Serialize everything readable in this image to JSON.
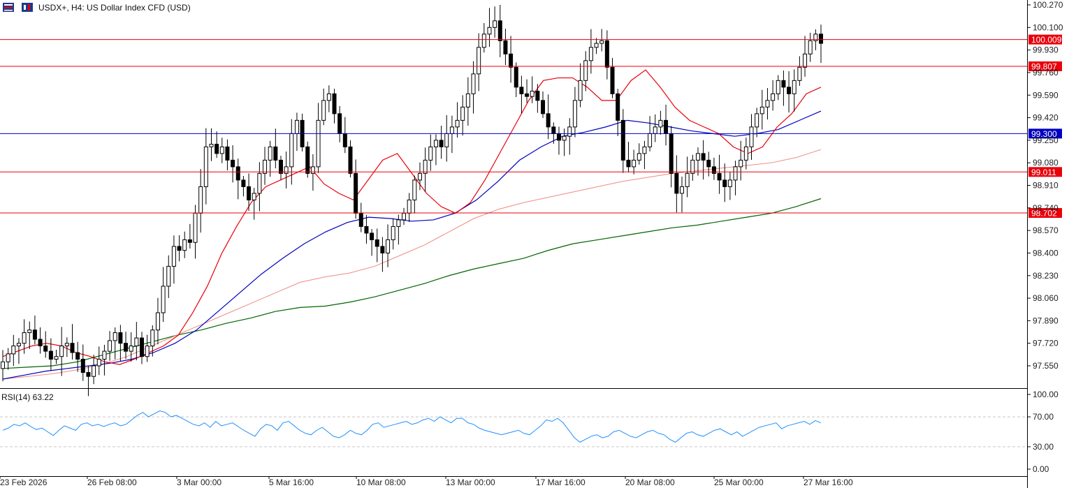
{
  "header": {
    "symbol_text": "USDX+, H4:  US Dollar Index CFD (USD)"
  },
  "indicator": {
    "label": "RSI(14) 63.22"
  },
  "colors": {
    "background": "#ffffff",
    "grid_dash": "#c8c8c8",
    "candle": "#000000",
    "ema_fast": "#e8000b",
    "ema_mid": "#0000c0",
    "ema_slow": "#f08a80",
    "ema_long": "#006400",
    "level_red": "#e8000b",
    "level_blue": "#0000c0",
    "rsi_line": "#1e90ff"
  },
  "chart_data": [
    {
      "type": "candlestick",
      "title": "USDX+, H4:  US Dollar Index CFD (USD)",
      "ylim": [
        97.42,
        100.3
      ],
      "y_ticks": [
        "100.270",
        "100.100",
        "99.930",
        "99.760",
        "99.590",
        "99.420",
        "99.250",
        "99.080",
        "98.910",
        "98.740",
        "98.570",
        "98.400",
        "98.230",
        "98.060",
        "97.890",
        "97.720",
        "97.550"
      ],
      "x_ticks": [
        "23 Feb 2026",
        "26 Feb 08:00",
        "3 Mar 00:00",
        "5 Mar 16:00",
        "10 Mar 08:00",
        "13 Mar 00:00",
        "17 Mar 16:00",
        "20 Mar 08:00",
        "25 Mar 00:00",
        "27 Mar 16:00"
      ],
      "horizontal_levels": [
        {
          "value": 100.009,
          "label": "100.009",
          "color": "red"
        },
        {
          "value": 99.807,
          "label": "99.807",
          "color": "red"
        },
        {
          "value": 99.3,
          "label": "99.300",
          "color": "blue"
        },
        {
          "value": 99.011,
          "label": "99.011",
          "color": "red"
        },
        {
          "value": 98.702,
          "label": "98.702",
          "color": "red"
        }
      ],
      "series": [
        {
          "role": "close",
          "values": [
            97.58,
            97.64,
            97.7,
            97.72,
            97.8,
            97.82,
            97.75,
            97.7,
            97.66,
            97.6,
            97.62,
            97.7,
            97.72,
            97.65,
            97.6,
            97.5,
            97.47,
            97.55,
            97.6,
            97.66,
            97.74,
            97.8,
            97.72,
            97.66,
            97.7,
            97.76,
            97.62,
            97.7,
            97.82,
            97.95,
            98.15,
            98.3,
            98.45,
            98.42,
            98.5,
            98.48,
            98.7,
            98.9,
            99.2,
            99.22,
            99.15,
            99.2,
            99.1,
            99.05,
            98.95,
            98.9,
            98.8,
            98.85,
            99.0,
            99.1,
            99.2,
            99.1,
            99.0,
            99.05,
            99.3,
            99.4,
            99.2,
            99.0,
            99.05,
            99.4,
            99.55,
            99.6,
            99.45,
            99.3,
            99.2,
            99.0,
            98.7,
            98.6,
            98.55,
            98.5,
            98.45,
            98.4,
            98.5,
            98.6,
            98.65,
            98.7,
            98.8,
            98.95,
            99.0,
            99.1,
            99.2,
            99.25,
            99.2,
            99.3,
            99.35,
            99.4,
            99.5,
            99.6,
            99.75,
            99.95,
            100.05,
            100.1,
            100.15,
            100.0,
            99.9,
            99.8,
            99.65,
            99.6,
            99.58,
            99.62,
            99.55,
            99.45,
            99.35,
            99.3,
            99.25,
            99.28,
            99.35,
            99.55,
            99.7,
            99.85,
            99.95,
            99.98,
            100.0,
            99.8,
            99.6,
            99.4,
            99.1,
            99.05,
            99.1,
            99.15,
            99.2,
            99.3,
            99.35,
            99.4,
            99.3,
            99.0,
            98.85,
            98.9,
            99.0,
            99.1,
            99.15,
            99.1,
            99.05,
            99.0,
            98.95,
            98.9,
            98.95,
            99.05,
            99.1,
            99.2,
            99.35,
            99.45,
            99.5,
            99.55,
            99.6,
            99.7,
            99.65,
            99.6,
            99.7,
            99.8,
            99.9,
            100.0,
            100.05,
            99.98
          ]
        },
        {
          "role": "ema_fast",
          "values": [
            97.62,
            97.66,
            97.7,
            97.72,
            97.7,
            97.65,
            97.62,
            97.58,
            97.56,
            97.6,
            97.65,
            97.7,
            97.78,
            97.95,
            98.15,
            98.4,
            98.6,
            98.78,
            98.9,
            98.95,
            99.0,
            99.05,
            98.92,
            98.85,
            98.8,
            98.95,
            99.1,
            99.15,
            99.0,
            98.85,
            98.75,
            98.7,
            98.78,
            98.95,
            99.15,
            99.35,
            99.55,
            99.7,
            99.72,
            99.72,
            99.65,
            99.55,
            99.55,
            99.7,
            99.78,
            99.65,
            99.5,
            99.4,
            99.35,
            99.3,
            99.2,
            99.15,
            99.2,
            99.35,
            99.45,
            99.6,
            99.65
          ]
        },
        {
          "role": "ema_mid",
          "values": [
            97.45,
            97.48,
            97.51,
            97.53,
            97.55,
            97.57,
            97.6,
            97.65,
            97.72,
            97.82,
            97.96,
            98.1,
            98.24,
            98.36,
            98.47,
            98.56,
            98.63,
            98.67,
            98.66,
            98.64,
            98.65,
            98.7,
            98.8,
            98.94,
            99.1,
            99.2,
            99.28,
            99.31,
            99.35,
            99.4,
            99.38,
            99.35,
            99.32,
            99.3,
            99.28,
            99.3,
            99.33,
            99.4,
            99.47
          ]
        },
        {
          "role": "ema_slow",
          "values": [
            97.45,
            97.47,
            97.49,
            97.52,
            97.56,
            97.62,
            97.7,
            97.78,
            97.86,
            97.94,
            98.02,
            98.1,
            98.18,
            98.22,
            98.25,
            98.3,
            98.38,
            98.46,
            98.56,
            98.66,
            98.73,
            98.78,
            98.82,
            98.86,
            98.9,
            98.94,
            98.97,
            99.0,
            99.02,
            99.04,
            99.06,
            99.08,
            99.12,
            99.18
          ]
        },
        {
          "role": "ema_long",
          "values": [
            97.53,
            97.54,
            97.55,
            97.58,
            97.63,
            97.68,
            97.73,
            97.78,
            97.82,
            97.87,
            97.91,
            97.96,
            97.99,
            98.0,
            98.03,
            98.07,
            98.12,
            98.17,
            98.23,
            98.28,
            98.32,
            98.36,
            98.42,
            98.47,
            98.5,
            98.53,
            98.56,
            98.59,
            98.61,
            98.64,
            98.67,
            98.7,
            98.75,
            98.81
          ]
        }
      ]
    },
    {
      "type": "line",
      "title": "RSI(14) 63.22",
      "ylim": [
        0,
        100
      ],
      "y_ticks": [
        "100.00",
        "70.00",
        "30.00",
        "0.00"
      ],
      "dashed_levels": [
        70,
        30
      ],
      "series": [
        {
          "role": "rsi",
          "values": [
            52,
            55,
            60,
            58,
            62,
            57,
            53,
            55,
            50,
            45,
            52,
            58,
            55,
            52,
            60,
            62,
            58,
            60,
            57,
            60,
            62,
            58,
            60,
            66,
            72,
            76,
            70,
            74,
            78,
            76,
            70,
            72,
            68,
            64,
            60,
            58,
            62,
            56,
            64,
            58,
            60,
            62,
            57,
            52,
            48,
            44,
            54,
            60,
            58,
            52,
            62,
            64,
            58,
            52,
            48,
            46,
            52,
            56,
            50,
            44,
            42,
            46,
            52,
            48,
            46,
            52,
            60,
            62,
            56,
            58,
            60,
            62,
            64,
            60,
            62,
            66,
            68,
            64,
            70,
            66,
            62,
            68,
            68,
            62,
            60,
            55,
            52,
            50,
            48,
            46,
            48,
            50,
            52,
            48,
            46,
            52,
            58,
            66,
            64,
            68,
            62,
            52,
            42,
            36,
            40,
            44,
            46,
            42,
            44,
            50,
            52,
            48,
            44,
            42,
            46,
            50,
            52,
            48,
            46,
            40,
            36,
            42,
            48,
            50,
            46,
            44,
            48,
            52,
            54,
            50,
            46,
            50,
            44,
            48,
            52,
            56,
            58,
            60,
            62,
            54,
            58,
            60,
            62,
            64,
            60,
            65,
            62
          ]
        }
      ]
    }
  ]
}
